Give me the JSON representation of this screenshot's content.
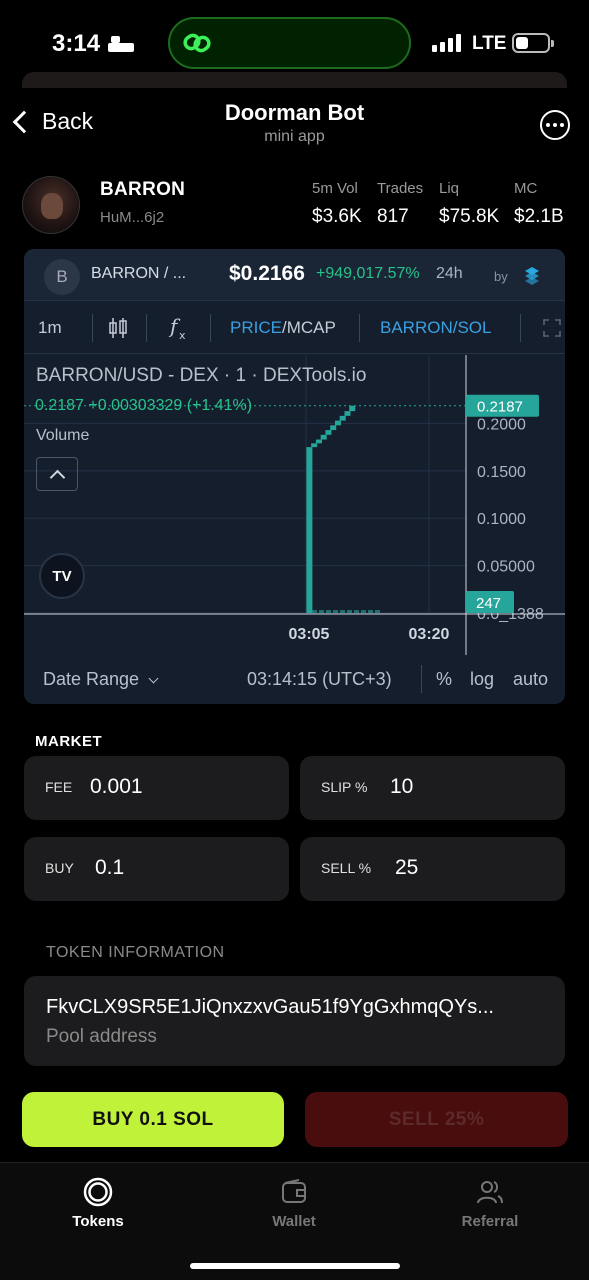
{
  "status": {
    "time": "3:14",
    "network": "LTE"
  },
  "header": {
    "back_label": "Back",
    "title": "Doorman Bot",
    "subtitle": "mini app"
  },
  "token": {
    "name": "BARRON",
    "address": "HuM...6j2",
    "stats": [
      {
        "label": "5m Vol",
        "value": "$3.6K"
      },
      {
        "label": "Trades",
        "value": "817"
      },
      {
        "label": "Liq",
        "value": "$75.8K"
      },
      {
        "label": "MC",
        "value": "$2.1B"
      }
    ]
  },
  "chart": {
    "icon_letter": "B",
    "symbol": "BARRON / ...",
    "price": "$0.2166",
    "change": "+949,017.57%",
    "period": "24h",
    "by": "by",
    "toolbar": {
      "interval": "1m",
      "price": "PRICE",
      "separator": "/",
      "mcap": "MCAP",
      "pair": "BARRON/SOL"
    },
    "legend": "BARRON/USD - DEX · 1 · DEXTools.io",
    "ohlc": "0.2187  +0.00303329 (+1.41%)",
    "volume_label": "Volume",
    "tv_label": "TV",
    "bottom": {
      "date_range": "Date Range",
      "time": "03:14:15 (UTC+3)",
      "percent": "%",
      "log": "log",
      "auto": "auto"
    }
  },
  "chart_data": {
    "type": "candlestick",
    "ylim": [
      0,
      0.23
    ],
    "y_ticks": [
      "0.2000",
      "0.1500",
      "0.1000",
      "0.05000",
      "0.0_1388"
    ],
    "y_tick_values": [
      0.2,
      0.15,
      0.1,
      0.05,
      0.0
    ],
    "x_ticks": [
      "03:05",
      "03:20"
    ],
    "x_tick_positions": [
      0.0,
      1.0
    ],
    "last_price_label": "0.2187",
    "volume_label": "247",
    "candles": [
      {
        "t": 0.05,
        "o": 0.0,
        "c": 0.175
      },
      {
        "t": 0.12,
        "o": 0.175,
        "c": 0.179
      },
      {
        "t": 0.19,
        "o": 0.179,
        "c": 0.183
      },
      {
        "t": 0.26,
        "o": 0.183,
        "c": 0.188
      },
      {
        "t": 0.33,
        "o": 0.188,
        "c": 0.193
      },
      {
        "t": 0.4,
        "o": 0.193,
        "c": 0.198
      },
      {
        "t": 0.47,
        "o": 0.198,
        "c": 0.203
      },
      {
        "t": 0.54,
        "o": 0.203,
        "c": 0.208
      },
      {
        "t": 0.61,
        "o": 0.208,
        "c": 0.213
      },
      {
        "t": 0.68,
        "o": 0.213,
        "c": 0.2187
      }
    ],
    "colors": {
      "up": "#26a69a",
      "grid": "#243044"
    }
  },
  "market": {
    "label": "MARKET",
    "fee_label": "FEE",
    "fee_value": "0.001",
    "slip_label": "SLIP %",
    "slip_value": "10",
    "buy_label": "BUY",
    "buy_value": "0.1",
    "sell_label": "SELL %",
    "sell_value": "25"
  },
  "info": {
    "label": "TOKEN INFORMATION",
    "pool_address": "FkvCLX9SR5E1JiQnxzxvGau51f9YgGxhmqQYs...",
    "pool_label": "Pool address"
  },
  "actions": {
    "buy": "BUY 0.1 SOL",
    "sell": "SELL 25%"
  },
  "tabs": [
    {
      "label": "Tokens",
      "active": true
    },
    {
      "label": "Wallet",
      "active": false
    },
    {
      "label": "Referral",
      "active": false
    }
  ],
  "colors": {
    "accent": "#c0f23a",
    "sell_bg": "#4a0d0d",
    "chart_bg": "#151e2d",
    "positive": "#27c28a",
    "link": "#3aa0e0"
  }
}
